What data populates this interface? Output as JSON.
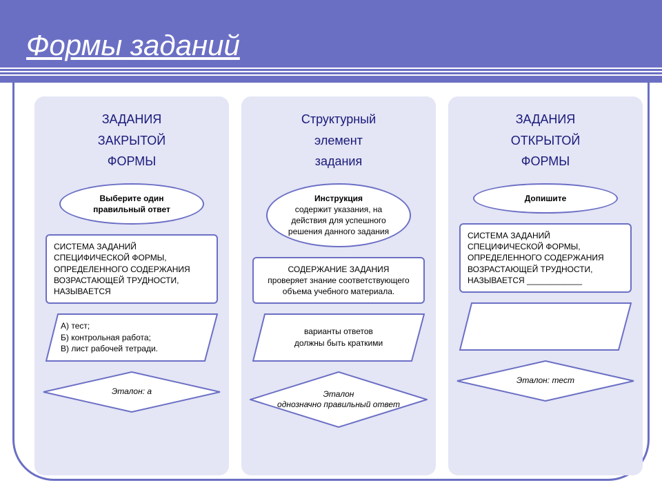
{
  "colors": {
    "accent": "#6b6fc4",
    "panel": "#e4e5f5",
    "title_text": "#1a1a7a",
    "white": "#ffffff"
  },
  "slide_title": "Формы заданий",
  "columns": [
    {
      "header": "ЗАДАНИЯ\nЗАКРЫТОЙ\nФОРМЫ",
      "ellipse_bold": "Выберите один правильный ответ",
      "ellipse_rest": "",
      "rect": "СИСТЕМА ЗАДАНИЙ СПЕЦИФИЧЕСКОЙ ФОРМЫ, ОПРЕДЕЛЕННОГО СОДЕРЖАНИЯ ВОЗРАСТАЮЩЕЙ ТРУДНОСТИ, НАЗЫВАЕТСЯ",
      "rect_center": false,
      "para": "А) тест;\nБ) контрольная работа;\nВ) лист рабочей тетради.",
      "para_center": false,
      "diamond": "Эталон: a"
    },
    {
      "header": "Структурный\nэлемент\nзадания",
      "ellipse_bold": "Инструкция",
      "ellipse_rest": "содержит указания, на действия для успешного решения данного задания",
      "rect": "СОДЕРЖАНИЕ ЗАДАНИЯ\nпроверяет знание соответствующего объема учебного материала.",
      "rect_center": true,
      "para": "варианты ответов\nдолжны быть краткими",
      "para_center": true,
      "diamond": "Эталон\nоднозначно правильный ответ"
    },
    {
      "header": "ЗАДАНИЯ\nОТКРЫТОЙ\nФОРМЫ",
      "ellipse_bold": "Допишите",
      "ellipse_rest": "",
      "rect": "СИСТЕМА ЗАДАНИЙ СПЕЦИФИЧЕСКОЙ ФОРМЫ, ОПРЕДЕЛЕННОГО СОДЕРЖАНИЯ ВОЗРАСТАЮЩЕЙ ТРУДНОСТИ, НАЗЫВАЕТСЯ ____________",
      "rect_center": false,
      "para": "",
      "para_center": false,
      "diamond": "Эталон: тест"
    }
  ]
}
